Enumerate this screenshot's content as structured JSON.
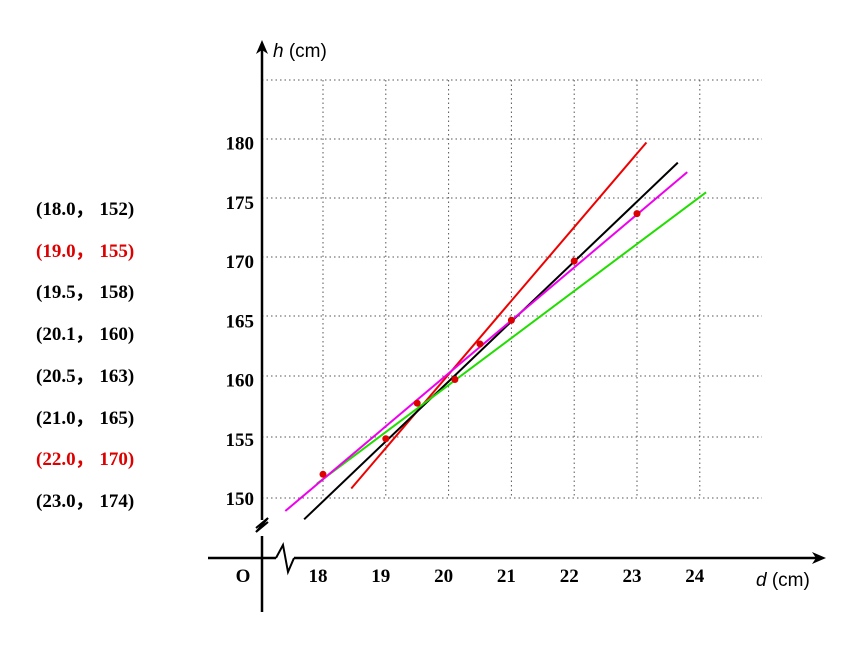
{
  "points_list": [
    {
      "text": "(18.0， 152)",
      "highlight": false
    },
    {
      "text": "(19.0， 155)",
      "highlight": true
    },
    {
      "text": "(19.5， 158)",
      "highlight": false
    },
    {
      "text": "(20.1， 160)",
      "highlight": false
    },
    {
      "text": "(20.5， 163)",
      "highlight": false
    },
    {
      "text": "(21.0， 165)",
      "highlight": false
    },
    {
      "text": "(22.0， 170)",
      "highlight": true
    },
    {
      "text": "(23.0， 174)",
      "highlight": false
    }
  ],
  "chart_data": {
    "type": "scatter",
    "title": "",
    "xlabel": {
      "var": "d",
      "unit": " (cm)"
    },
    "ylabel": {
      "var": "h",
      "unit": " (cm)"
    },
    "origin_label": "O",
    "x_ticks": [
      18,
      19,
      20,
      21,
      22,
      23,
      24
    ],
    "y_ticks": [
      150,
      155,
      160,
      165,
      170,
      175,
      180
    ],
    "xlim": [
      17,
      25
    ],
    "ylim": [
      148,
      184
    ],
    "axis_breaks": true,
    "grid": true,
    "grid_style": "dotted",
    "points": [
      {
        "x": 18.0,
        "y": 152
      },
      {
        "x": 19.0,
        "y": 155
      },
      {
        "x": 19.5,
        "y": 158
      },
      {
        "x": 20.1,
        "y": 160
      },
      {
        "x": 20.5,
        "y": 163
      },
      {
        "x": 21.0,
        "y": 165
      },
      {
        "x": 22.0,
        "y": 170
      },
      {
        "x": 23.0,
        "y": 174
      }
    ],
    "point_color": "#dd0000",
    "lines": [
      {
        "color": "#ee0000",
        "x0": 18.45,
        "y0": 150.8,
        "x1": 23.15,
        "y1": 180.0
      },
      {
        "color": "#000000",
        "x0": 17.7,
        "y0": 148.2,
        "x1": 23.65,
        "y1": 178.3
      },
      {
        "color": "#22dd00",
        "x0": 17.9,
        "y0": 151.2,
        "x1": 24.1,
        "y1": 175.8
      },
      {
        "color": "#ee00ee",
        "x0": 17.4,
        "y0": 148.9,
        "x1": 23.8,
        "y1": 177.5
      }
    ]
  }
}
